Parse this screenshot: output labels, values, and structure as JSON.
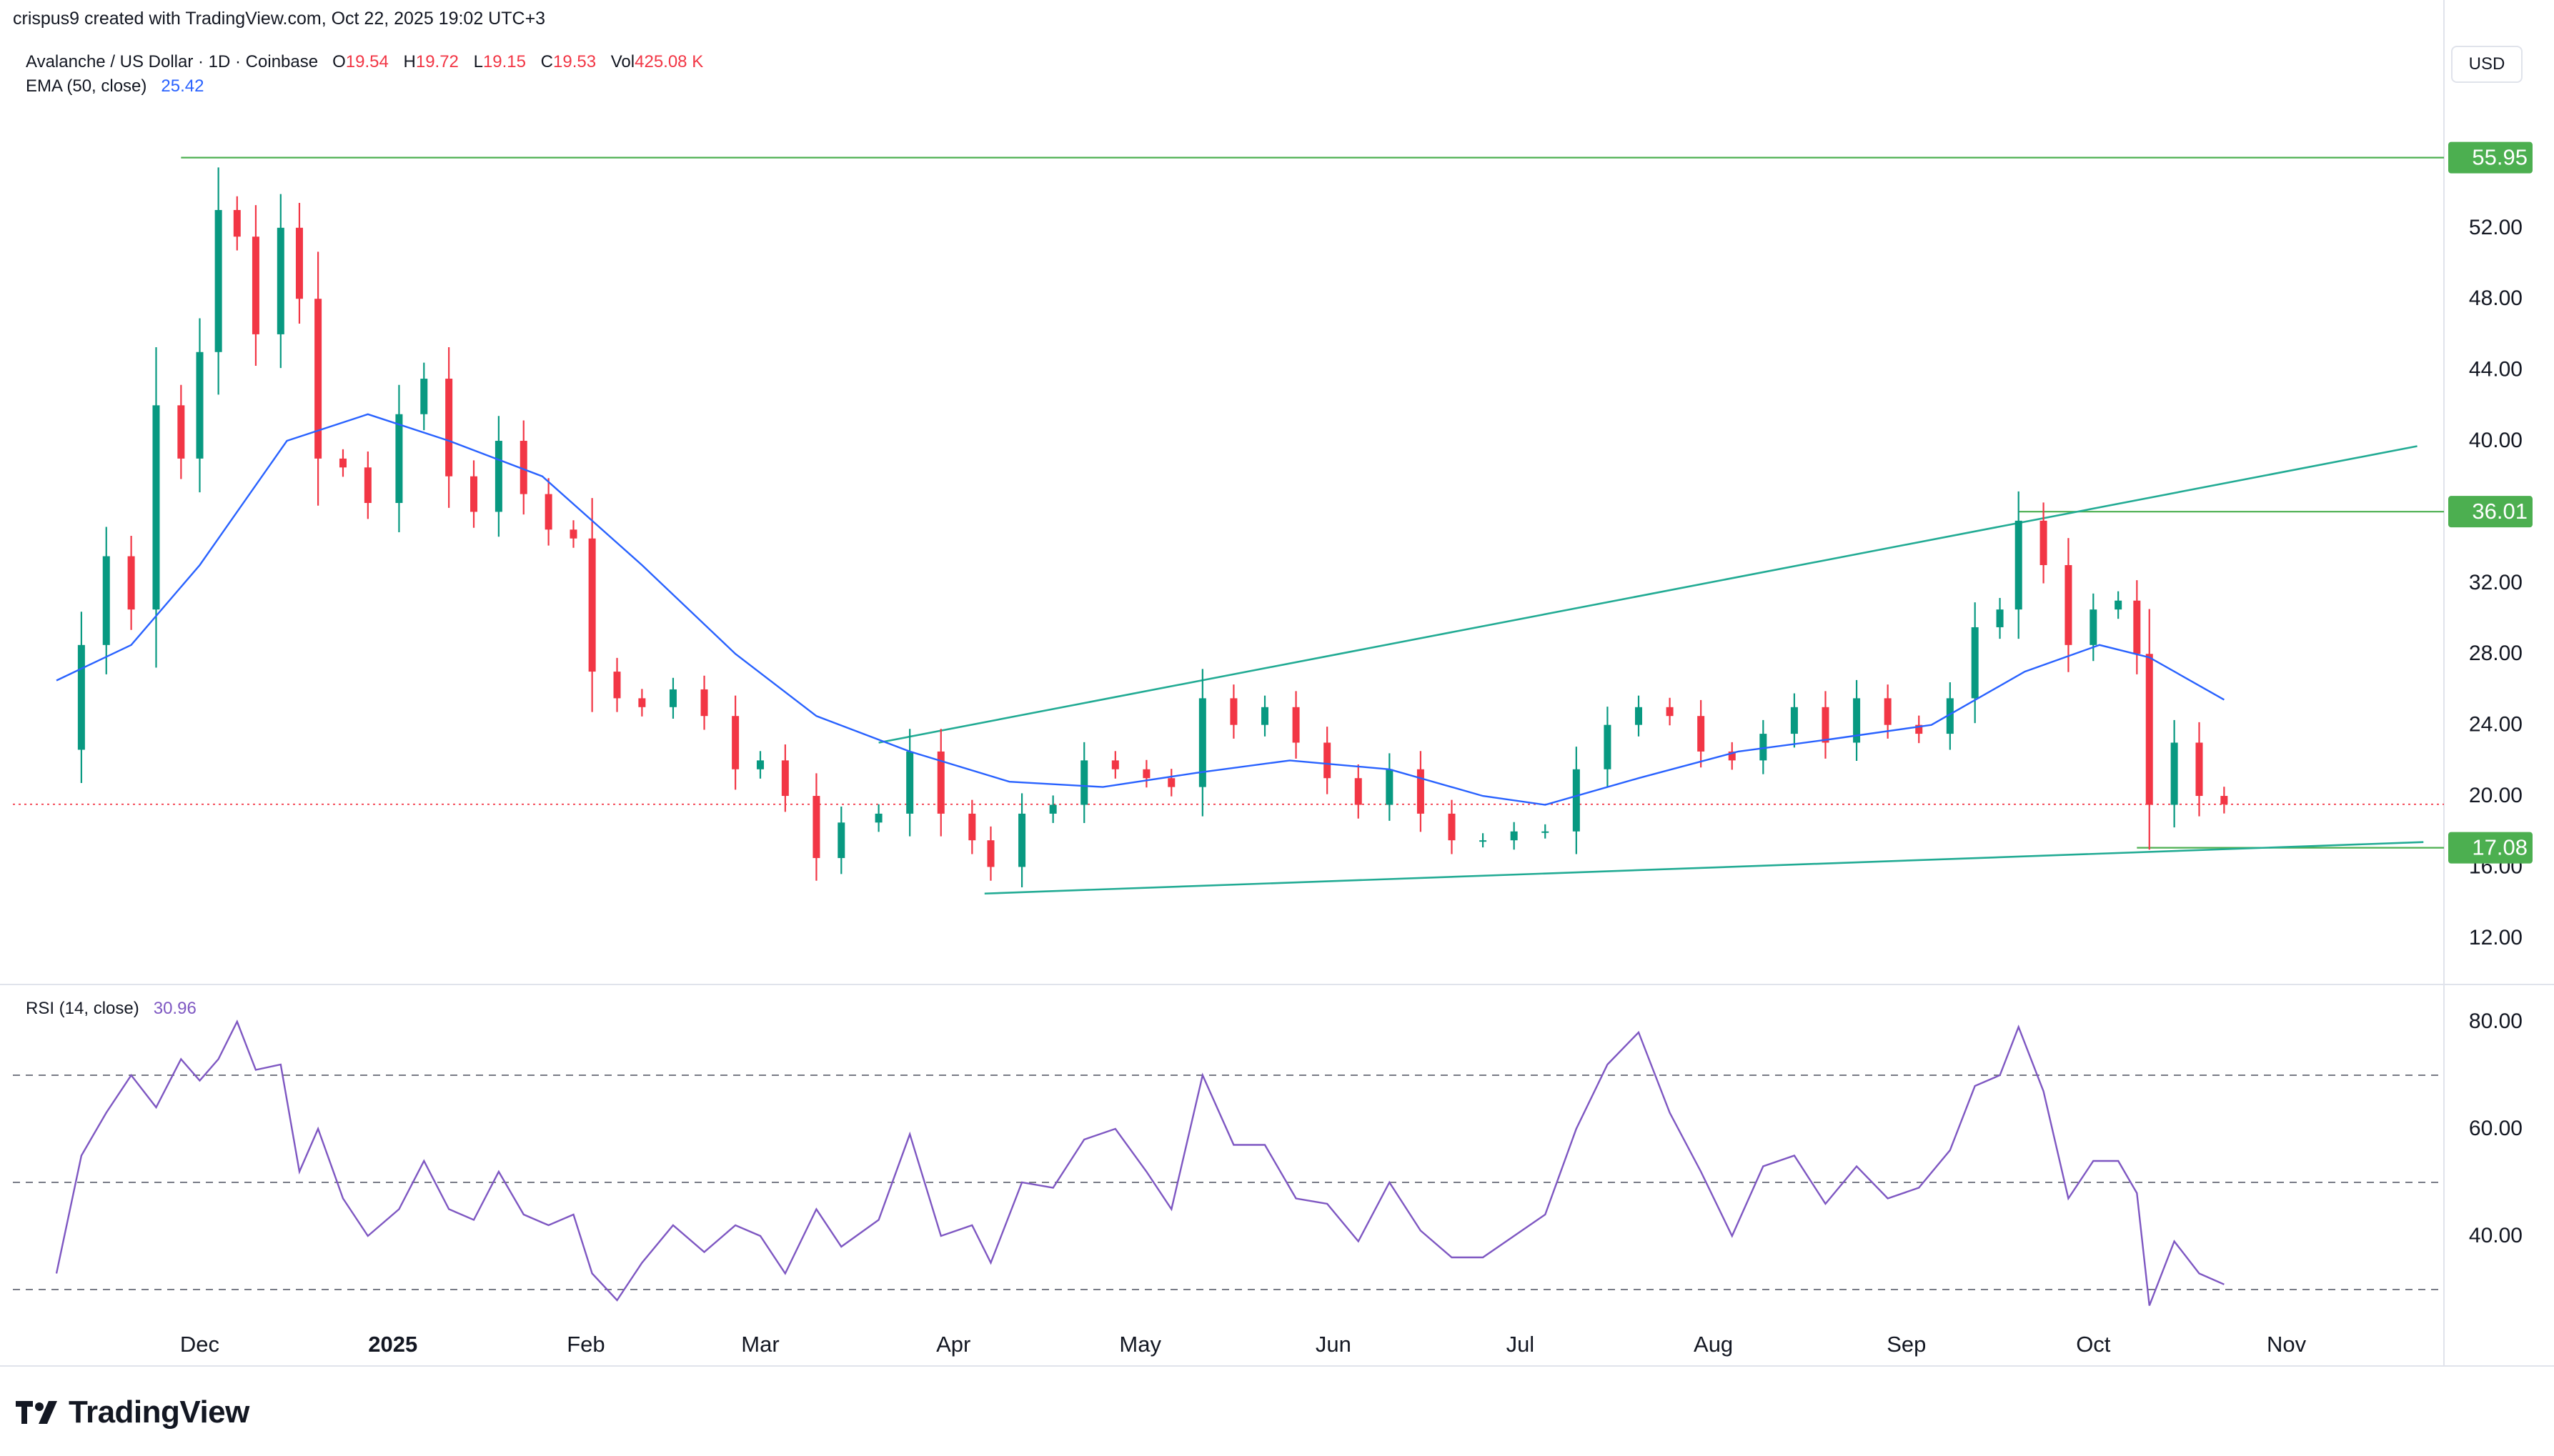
{
  "top_line": "crispus9 created with TradingView.com, Oct 22, 2025 19:02 UTC+3",
  "header": {
    "symbol": "Avalanche / US Dollar · 1D · Coinbase",
    "o_label": "O",
    "o": "19.54",
    "h_label": "H",
    "h": "19.72",
    "l_label": "L",
    "l": "19.15",
    "c_label": "C",
    "c": "19.53",
    "vol_label": "Vol",
    "vol": "425.08 K",
    "ema_label": "EMA (50, close)",
    "ema": "25.42"
  },
  "rsi_header": {
    "label": "RSI (14, close)",
    "value": "30.96"
  },
  "currency": "USD",
  "logo_text": "TradingView",
  "colors": {
    "up": "#089981",
    "down": "#f23645",
    "ema": "#2962ff",
    "rsi": "#7e57c2",
    "trend": "#22ab94",
    "level_badge": "#4caf50",
    "price_line": "#f23645"
  },
  "chart_data": [
    {
      "type": "candlestick",
      "title": "Avalanche / US Dollar · 1D · Coinbase",
      "xlabel": "",
      "ylabel": "",
      "x_ticks": [
        "Dec",
        "2025",
        "Feb",
        "Mar",
        "Apr",
        "May",
        "Jun",
        "Jul",
        "Aug",
        "Sep",
        "Oct",
        "Nov"
      ],
      "y_ticks": [
        "52.00",
        "48.00",
        "44.00",
        "40.00",
        "32.00",
        "28.00",
        "24.00",
        "20.00",
        "16.00",
        "12.00"
      ],
      "ylim": [
        9.5,
        60
      ],
      "grid": false,
      "horizontal_levels": [
        55.95,
        36.01,
        17.08
      ],
      "level_labels": [
        "55.95",
        "36.01",
        "17.08"
      ],
      "current_price": 19.53,
      "trendlines": [
        {
          "start": [
            "2025-03-20",
            23.0
          ],
          "end": [
            "2025-11-22",
            39.7
          ]
        },
        {
          "start": [
            "2025-04-06",
            14.5
          ],
          "end": [
            "2025-11-23",
            17.4
          ]
        }
      ],
      "close_series": [
        [
          "2024-11-08",
          22.6
        ],
        [
          "2024-11-12",
          28.5
        ],
        [
          "2024-11-16",
          33.5
        ],
        [
          "2024-11-20",
          30.5
        ],
        [
          "2024-11-24",
          42.0
        ],
        [
          "2024-11-28",
          39.0
        ],
        [
          "2024-12-01",
          45.0
        ],
        [
          "2024-12-04",
          53.0
        ],
        [
          "2024-12-07",
          51.5
        ],
        [
          "2024-12-10",
          46.0
        ],
        [
          "2024-12-14",
          52.0
        ],
        [
          "2024-12-17",
          48.0
        ],
        [
          "2024-12-20",
          39.0
        ],
        [
          "2024-12-24",
          38.5
        ],
        [
          "2024-12-28",
          36.5
        ],
        [
          "2025-01-02",
          41.5
        ],
        [
          "2025-01-06",
          43.5
        ],
        [
          "2025-01-10",
          38.0
        ],
        [
          "2025-01-14",
          36.0
        ],
        [
          "2025-01-18",
          40.0
        ],
        [
          "2025-01-22",
          37.0
        ],
        [
          "2025-01-26",
          35.0
        ],
        [
          "2025-01-30",
          34.5
        ],
        [
          "2025-02-02",
          27.0
        ],
        [
          "2025-02-06",
          25.5
        ],
        [
          "2025-02-10",
          25.0
        ],
        [
          "2025-02-15",
          26.0
        ],
        [
          "2025-02-20",
          24.5
        ],
        [
          "2025-02-25",
          21.5
        ],
        [
          "2025-03-01",
          22.0
        ],
        [
          "2025-03-05",
          20.0
        ],
        [
          "2025-03-10",
          16.5
        ],
        [
          "2025-03-14",
          18.5
        ],
        [
          "2025-03-20",
          19.0
        ],
        [
          "2025-03-25",
          22.5
        ],
        [
          "2025-03-30",
          19.0
        ],
        [
          "2025-04-04",
          17.5
        ],
        [
          "2025-04-07",
          16.0
        ],
        [
          "2025-04-12",
          19.0
        ],
        [
          "2025-04-17",
          19.5
        ],
        [
          "2025-04-22",
          22.0
        ],
        [
          "2025-04-27",
          21.5
        ],
        [
          "2025-05-02",
          21.0
        ],
        [
          "2025-05-06",
          20.5
        ],
        [
          "2025-05-11",
          25.5
        ],
        [
          "2025-05-16",
          24.0
        ],
        [
          "2025-05-21",
          25.0
        ],
        [
          "2025-05-26",
          23.0
        ],
        [
          "2025-05-31",
          21.0
        ],
        [
          "2025-06-05",
          19.5
        ],
        [
          "2025-06-10",
          21.5
        ],
        [
          "2025-06-15",
          19.0
        ],
        [
          "2025-06-20",
          17.5
        ],
        [
          "2025-06-25",
          17.5
        ],
        [
          "2025-06-30",
          18.0
        ],
        [
          "2025-07-05",
          18.0
        ],
        [
          "2025-07-10",
          21.5
        ],
        [
          "2025-07-15",
          24.0
        ],
        [
          "2025-07-20",
          25.0
        ],
        [
          "2025-07-25",
          24.5
        ],
        [
          "2025-07-30",
          22.5
        ],
        [
          "2025-08-04",
          22.0
        ],
        [
          "2025-08-09",
          23.5
        ],
        [
          "2025-08-14",
          25.0
        ],
        [
          "2025-08-19",
          23.0
        ],
        [
          "2025-08-24",
          25.5
        ],
        [
          "2025-08-29",
          24.0
        ],
        [
          "2025-09-03",
          23.5
        ],
        [
          "2025-09-08",
          25.5
        ],
        [
          "2025-09-12",
          29.5
        ],
        [
          "2025-09-16",
          30.5
        ],
        [
          "2025-09-19",
          35.5
        ],
        [
          "2025-09-23",
          33.0
        ],
        [
          "2025-09-27",
          28.5
        ],
        [
          "2025-10-01",
          30.5
        ],
        [
          "2025-10-05",
          31.0
        ],
        [
          "2025-10-08",
          28.0
        ],
        [
          "2025-10-10",
          19.5
        ],
        [
          "2025-10-14",
          23.0
        ],
        [
          "2025-10-18",
          20.0
        ],
        [
          "2025-10-22",
          19.53
        ]
      ],
      "ema_series": [
        [
          "2024-11-08",
          26.5
        ],
        [
          "2024-11-20",
          28.5
        ],
        [
          "2024-12-01",
          33.0
        ],
        [
          "2024-12-15",
          40.0
        ],
        [
          "2024-12-28",
          41.5
        ],
        [
          "2025-01-10",
          40.0
        ],
        [
          "2025-01-25",
          38.0
        ],
        [
          "2025-02-10",
          33.0
        ],
        [
          "2025-02-25",
          28.0
        ],
        [
          "2025-03-10",
          24.5
        ],
        [
          "2025-03-25",
          22.5
        ],
        [
          "2025-04-10",
          20.8
        ],
        [
          "2025-04-25",
          20.5
        ],
        [
          "2025-05-10",
          21.3
        ],
        [
          "2025-05-25",
          22.0
        ],
        [
          "2025-06-10",
          21.5
        ],
        [
          "2025-06-25",
          20.0
        ],
        [
          "2025-07-05",
          19.5
        ],
        [
          "2025-07-20",
          21.0
        ],
        [
          "2025-08-05",
          22.5
        ],
        [
          "2025-08-20",
          23.2
        ],
        [
          "2025-09-05",
          24.0
        ],
        [
          "2025-09-20",
          27.0
        ],
        [
          "2025-10-02",
          28.5
        ],
        [
          "2025-10-10",
          27.8
        ],
        [
          "2025-10-22",
          25.42
        ]
      ]
    },
    {
      "type": "line",
      "title": "RSI (14, close)",
      "xlabel": "",
      "ylabel": "",
      "y_ticks": [
        "80.00",
        "60.00",
        "40.00"
      ],
      "ylim": [
        24,
        84
      ],
      "guide_levels": [
        70,
        50,
        30
      ],
      "series": [
        {
          "values": [
            [
              "2024-11-08",
              33
            ],
            [
              "2024-11-12",
              55
            ],
            [
              "2024-11-16",
              63
            ],
            [
              "2024-11-20",
              70
            ],
            [
              "2024-11-24",
              64
            ],
            [
              "2024-11-28",
              73
            ],
            [
              "2024-12-01",
              69
            ],
            [
              "2024-12-04",
              73
            ],
            [
              "2024-12-07",
              80
            ],
            [
              "2024-12-10",
              71
            ],
            [
              "2024-12-14",
              72
            ],
            [
              "2024-12-17",
              52
            ],
            [
              "2024-12-20",
              60
            ],
            [
              "2024-12-24",
              47
            ],
            [
              "2024-12-28",
              40
            ],
            [
              "2025-01-02",
              45
            ],
            [
              "2025-01-06",
              54
            ],
            [
              "2025-01-10",
              45
            ],
            [
              "2025-01-14",
              43
            ],
            [
              "2025-01-18",
              52
            ],
            [
              "2025-01-22",
              44
            ],
            [
              "2025-01-26",
              42
            ],
            [
              "2025-01-30",
              44
            ],
            [
              "2025-02-02",
              33
            ],
            [
              "2025-02-06",
              28
            ],
            [
              "2025-02-10",
              35
            ],
            [
              "2025-02-15",
              42
            ],
            [
              "2025-02-20",
              37
            ],
            [
              "2025-02-25",
              42
            ],
            [
              "2025-03-01",
              40
            ],
            [
              "2025-03-05",
              33
            ],
            [
              "2025-03-10",
              45
            ],
            [
              "2025-03-14",
              38
            ],
            [
              "2025-03-20",
              43
            ],
            [
              "2025-03-25",
              59
            ],
            [
              "2025-03-30",
              40
            ],
            [
              "2025-04-04",
              42
            ],
            [
              "2025-04-07",
              35
            ],
            [
              "2025-04-12",
              50
            ],
            [
              "2025-04-17",
              49
            ],
            [
              "2025-04-22",
              58
            ],
            [
              "2025-04-27",
              60
            ],
            [
              "2025-05-02",
              52
            ],
            [
              "2025-05-06",
              45
            ],
            [
              "2025-05-11",
              70
            ],
            [
              "2025-05-16",
              57
            ],
            [
              "2025-05-21",
              57
            ],
            [
              "2025-05-26",
              47
            ],
            [
              "2025-05-31",
              46
            ],
            [
              "2025-06-05",
              39
            ],
            [
              "2025-06-10",
              50
            ],
            [
              "2025-06-15",
              41
            ],
            [
              "2025-06-20",
              36
            ],
            [
              "2025-06-25",
              36
            ],
            [
              "2025-06-30",
              40
            ],
            [
              "2025-07-05",
              44
            ],
            [
              "2025-07-10",
              60
            ],
            [
              "2025-07-15",
              72
            ],
            [
              "2025-07-20",
              78
            ],
            [
              "2025-07-25",
              63
            ],
            [
              "2025-07-30",
              52
            ],
            [
              "2025-08-04",
              40
            ],
            [
              "2025-08-09",
              53
            ],
            [
              "2025-08-14",
              55
            ],
            [
              "2025-08-19",
              46
            ],
            [
              "2025-08-24",
              53
            ],
            [
              "2025-08-29",
              47
            ],
            [
              "2025-09-03",
              49
            ],
            [
              "2025-09-08",
              56
            ],
            [
              "2025-09-12",
              68
            ],
            [
              "2025-09-16",
              70
            ],
            [
              "2025-09-19",
              79
            ],
            [
              "2025-09-23",
              67
            ],
            [
              "2025-09-27",
              47
            ],
            [
              "2025-10-01",
              54
            ],
            [
              "2025-10-05",
              54
            ],
            [
              "2025-10-08",
              48
            ],
            [
              "2025-10-10",
              27
            ],
            [
              "2025-10-14",
              39
            ],
            [
              "2025-10-18",
              33
            ],
            [
              "2025-10-22",
              30.96
            ]
          ]
        }
      ]
    }
  ]
}
